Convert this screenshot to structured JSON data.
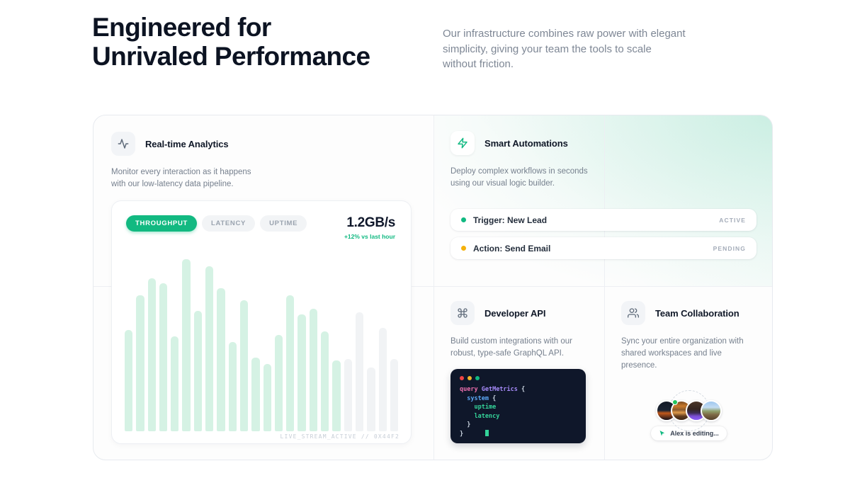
{
  "colors": {
    "accent_green": "#10b981",
    "amber": "#f5b10a",
    "heading": "#0c1322",
    "muted_text": "#7e8795",
    "bar_active": "#d5f2e4",
    "bar_muted": "#f1f3f5",
    "code_bg": "#0f172a"
  },
  "header": {
    "title_line1": "Engineered for",
    "title_line2": "Unrivaled Performance",
    "subtitle_lines": [
      "Our infrastructure combines raw power with elegant",
      "simplicity, giving your team the tools to scale",
      "without friction."
    ]
  },
  "cards": {
    "analytics": {
      "title": "Real-time Analytics",
      "description_lines": [
        "Monitor every interaction as it happens",
        "with our low-latency data pipeline."
      ],
      "tabs": [
        {
          "label": "THROUGHPUT",
          "active": true
        },
        {
          "label": "LATENCY",
          "active": false
        },
        {
          "label": "UPTIME",
          "active": false
        }
      ],
      "metric_value": "1.2GB/s",
      "metric_delta": "+12% vs last hour",
      "footer_label": "LIVE_STREAM_ACTIVE // 0X44F2",
      "chart_data": {
        "type": "bar",
        "title": "Throughput live stream",
        "xlabel": "",
        "ylabel": "",
        "grid": false,
        "legend": false,
        "unit": "percent_of_max_bar",
        "ylim": [
          0,
          100
        ],
        "values": [
          59,
          79,
          89,
          86,
          55,
          100,
          70,
          96,
          83,
          52,
          76,
          43,
          39,
          56,
          79,
          68,
          71,
          58,
          41,
          42,
          69,
          37,
          60,
          42
        ],
        "active_bars": 19,
        "bar_color_active": "#d5f2e4",
        "bar_color_muted": "#f1f3f5"
      }
    },
    "automations": {
      "title": "Smart Automations",
      "description_lines": [
        "Deploy complex workflows in seconds",
        "using our visual logic builder."
      ],
      "workflows": [
        {
          "label": "Trigger: New Lead",
          "status": "ACTIVE",
          "dot_color": "#10b981"
        },
        {
          "label": "Action: Send Email",
          "status": "PENDING",
          "dot_color": "#f5b10a"
        }
      ]
    },
    "api": {
      "title": "Developer API",
      "description_lines": [
        "Build custom integrations with our",
        "robust, type-safe GraphQL API."
      ],
      "token_colors": {
        "keyword": "#ec6ead",
        "type": "#a78bfa",
        "field": "#5ba8f5",
        "value": "#34d399",
        "plain": "#cbd5e1"
      },
      "window_dots": [
        "#ef4444",
        "#f0b429",
        "#10b981"
      ],
      "code_lines": [
        [
          {
            "t": "query",
            "c": "keyword"
          },
          {
            "t": " ",
            "c": "plain"
          },
          {
            "t": "GetMetrics",
            "c": "type"
          },
          {
            "t": " {",
            "c": "plain"
          }
        ],
        [
          {
            "t": "  ",
            "c": "plain"
          },
          {
            "t": "system",
            "c": "field"
          },
          {
            "t": " {",
            "c": "plain"
          }
        ],
        [
          {
            "t": "    ",
            "c": "plain"
          },
          {
            "t": "uptime",
            "c": "value"
          }
        ],
        [
          {
            "t": "    ",
            "c": "plain"
          },
          {
            "t": "latency",
            "c": "value"
          }
        ],
        [
          {
            "t": "  }",
            "c": "plain"
          }
        ],
        [
          {
            "t": "}",
            "c": "plain"
          },
          {
            "t": "      ",
            "c": "plain"
          },
          {
            "t": "",
            "c": "cursor"
          }
        ]
      ]
    },
    "collab": {
      "title": "Team Collaboration",
      "description_lines": [
        "Sync your entire organization with",
        "shared workspaces and live presence."
      ],
      "avatar_count": 4,
      "presence_label": "Alex is editing..."
    }
  }
}
